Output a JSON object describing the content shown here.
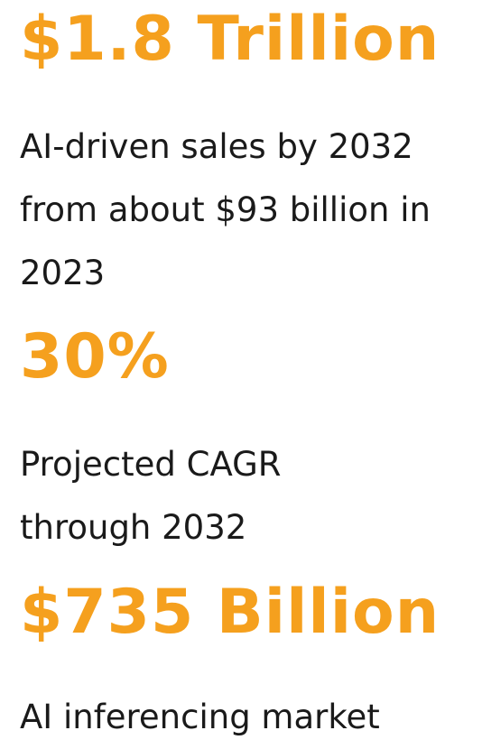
{
  "accent_color": "#F5A01E",
  "text_color": "#1a1a1a",
  "stats": [
    {
      "value": "$1.8 Trillion",
      "description_lines": [
        "AI-driven sales by 2032",
        "from about $93 billion in",
        "2023"
      ]
    },
    {
      "value": "30%",
      "description_lines": [
        "Projected CAGR",
        "through 2032"
      ]
    },
    {
      "value": "$735 Billion",
      "description_lines": [
        "AI inferencing market"
      ]
    }
  ]
}
